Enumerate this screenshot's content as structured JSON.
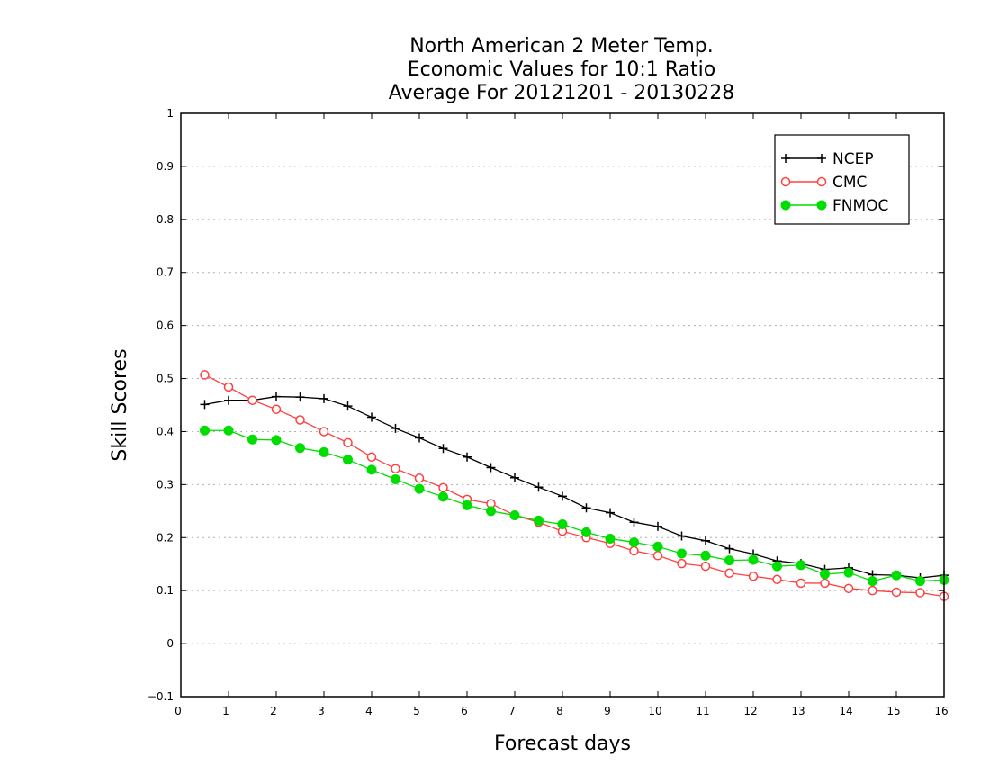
{
  "chart_data": {
    "type": "line",
    "title": "North American 2 Meter Temp.",
    "subtitle": "Economic Values for 10:1 Ratio",
    "subtitle2": "Average For 20121201 - 20130228",
    "xlabel": "Forecast days",
    "ylabel": "Skill Scores",
    "xlim": [
      0,
      16
    ],
    "ylim": [
      -0.1,
      1
    ],
    "xticks": [
      0,
      1,
      2,
      3,
      4,
      5,
      6,
      7,
      8,
      9,
      10,
      11,
      12,
      13,
      14,
      15,
      16
    ],
    "yticks": [
      -0.1,
      0,
      0.1,
      0.2,
      0.3,
      0.4,
      0.5,
      0.6,
      0.7,
      0.8,
      0.9,
      1
    ],
    "grid": true,
    "legend": "top-right",
    "x": [
      0.5,
      1,
      1.5,
      2,
      2.5,
      3,
      3.5,
      4,
      4.5,
      5,
      5.5,
      6,
      6.5,
      7,
      7.5,
      8,
      8.5,
      9,
      9.5,
      10,
      10.5,
      11,
      11.5,
      12,
      12.5,
      13,
      13.5,
      14,
      14.5,
      15,
      15.5,
      16
    ],
    "series": [
      {
        "name": "NCEP",
        "color": "#000000",
        "marker": "plus",
        "values": [
          0.451,
          0.459,
          0.459,
          0.466,
          0.465,
          0.462,
          0.448,
          0.427,
          0.406,
          0.388,
          0.368,
          0.352,
          0.332,
          0.313,
          0.295,
          0.278,
          0.256,
          0.247,
          0.229,
          0.221,
          0.203,
          0.194,
          0.179,
          0.169,
          0.156,
          0.151,
          0.14,
          0.143,
          0.13,
          0.129,
          0.124,
          0.129
        ]
      },
      {
        "name": "CMC",
        "color": "#ff4040",
        "marker": "open-circle",
        "values": [
          0.507,
          0.484,
          0.459,
          0.442,
          0.422,
          0.4,
          0.379,
          0.352,
          0.33,
          0.312,
          0.294,
          0.272,
          0.264,
          0.242,
          0.229,
          0.212,
          0.2,
          0.189,
          0.175,
          0.166,
          0.151,
          0.146,
          0.133,
          0.127,
          0.121,
          0.114,
          0.114,
          0.104,
          0.1,
          0.097,
          0.096,
          0.089
        ]
      },
      {
        "name": "FNMOC",
        "color": "#00dd00",
        "marker": "filled-circle",
        "values": [
          0.402,
          0.402,
          0.385,
          0.384,
          0.369,
          0.361,
          0.347,
          0.328,
          0.31,
          0.292,
          0.277,
          0.261,
          0.25,
          0.242,
          0.232,
          0.225,
          0.21,
          0.198,
          0.191,
          0.183,
          0.17,
          0.166,
          0.157,
          0.158,
          0.146,
          0.148,
          0.131,
          0.134,
          0.118,
          0.129,
          0.118,
          0.12
        ]
      }
    ]
  }
}
